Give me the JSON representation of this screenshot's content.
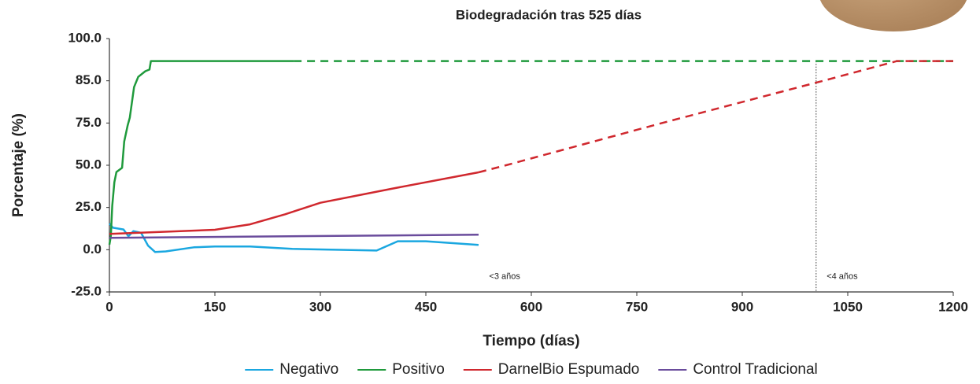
{
  "chart_data": {
    "type": "line",
    "title": "Biodegradación tras 525 días",
    "x_label": "Tiempo (días)",
    "y_label": "Porcentaje (%)",
    "xlim": [
      0,
      1200
    ],
    "xticks": [
      0,
      150,
      300,
      450,
      600,
      750,
      900,
      1050,
      1200
    ],
    "ylim": [
      -25,
      100
    ],
    "yticks": [
      {
        "value": -25,
        "label": "-25.0"
      },
      {
        "value": 0,
        "label": "0.0"
      },
      {
        "value": 25,
        "label": "25.0"
      },
      {
        "value": 50,
        "label": "50.0"
      },
      {
        "value": 75,
        "label": "75.0"
      },
      {
        "value": 85,
        "label": "85.0"
      },
      {
        "value": 100,
        "label": "100.0"
      }
    ],
    "series": [
      {
        "name": "Negativo",
        "color": "#1aa7e0",
        "x": [
          0,
          5,
          20,
          27,
          34,
          45,
          55,
          65,
          80,
          120,
          150,
          200,
          260,
          380,
          410,
          450,
          525
        ],
        "values": [
          15.5,
          13,
          12,
          8,
          11,
          10,
          2.4,
          -1.4,
          -1,
          1.4,
          1.9,
          1.9,
          0.5,
          -0.5,
          5,
          5,
          2.8
        ]
      },
      {
        "name": "Positivo",
        "color": "#1f9a3c",
        "x": [
          0,
          2,
          4,
          7,
          10,
          18,
          21,
          26,
          29,
          35,
          41,
          51,
          57,
          59,
          262
        ],
        "values": [
          3,
          8,
          26,
          40,
          46,
          48.5,
          64,
          73.6,
          76.3,
          83.5,
          86.4,
          88.4,
          89,
          92,
          92
        ],
        "projection": {
          "x": [
            262,
            1200
          ],
          "values": [
            92,
            92
          ]
        }
      },
      {
        "name": "DarnelBio Espumado",
        "color": "#d0282e",
        "x": [
          0,
          150,
          200,
          250,
          300,
          400,
          525
        ],
        "values": [
          9.4,
          11.8,
          15,
          21,
          27.8,
          36,
          45.8
        ],
        "projection": {
          "x": [
            525,
            564,
            786,
            1015,
            1120,
            1200
          ],
          "values": [
            45.8,
            50,
            75,
            85,
            92,
            92
          ]
        }
      },
      {
        "name": "Control Tradicional",
        "color": "#6a4c9c",
        "x": [
          0,
          525
        ],
        "values": [
          7,
          8.9
        ]
      }
    ],
    "reference_line": {
      "x": 1005,
      "y": [
        -25,
        92
      ]
    },
    "annotations": [
      {
        "text": "<3 años",
        "x": 540,
        "y": -16
      },
      {
        "text": "<4 años",
        "x": 1020,
        "y": -16
      }
    ],
    "legend": "bottom"
  }
}
